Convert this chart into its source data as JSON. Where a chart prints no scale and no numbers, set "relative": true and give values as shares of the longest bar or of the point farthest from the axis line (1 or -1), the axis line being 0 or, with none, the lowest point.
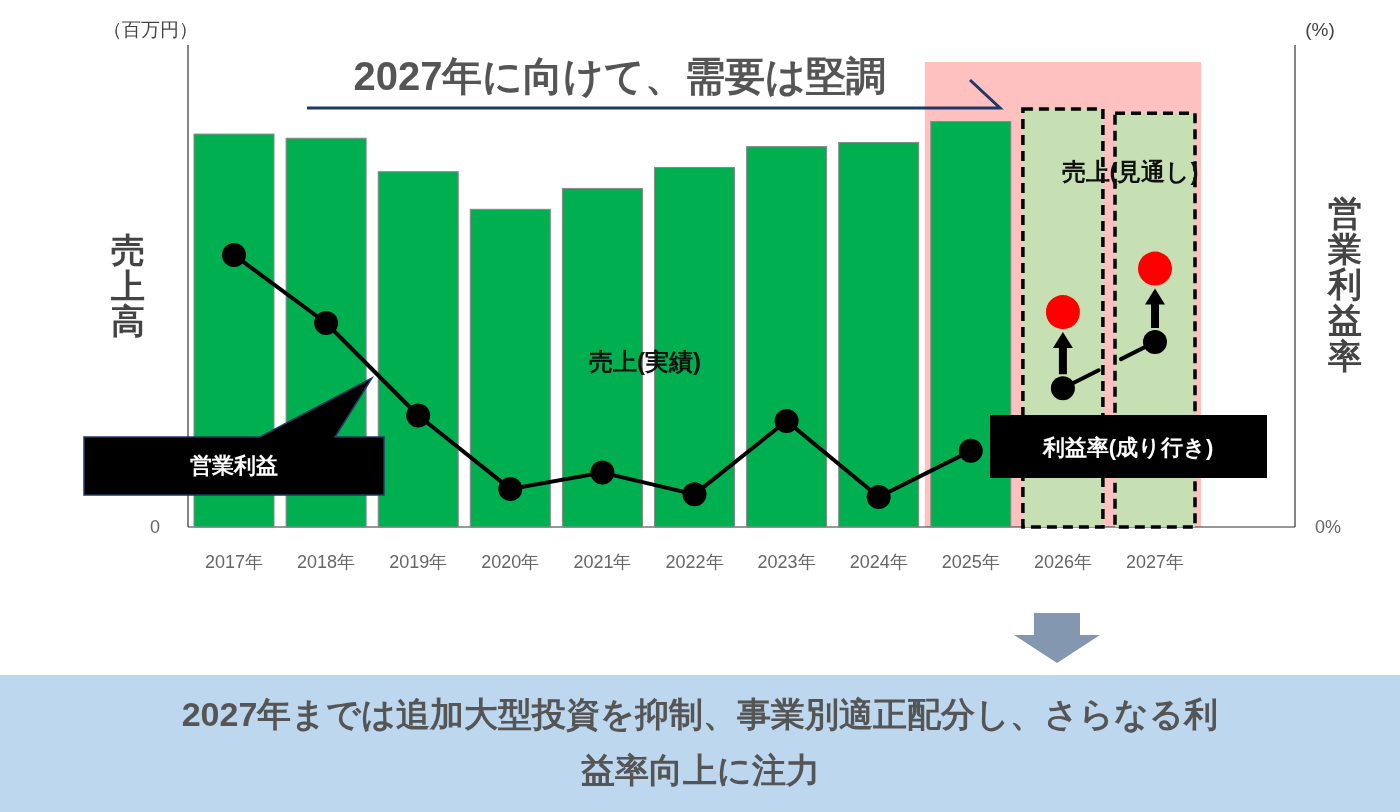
{
  "chart_data": {
    "type": "bar",
    "relative": true,
    "title": "2027年に向けて、需要は堅調",
    "ylabel": "売上高",
    "y2label": "営業利益率",
    "categories": [
      "2017年",
      "2018年",
      "2019年",
      "2020年",
      "2021年",
      "2022年",
      "2023年",
      "2024年",
      "2025年",
      "2026年",
      "2027年"
    ],
    "series": [
      {
        "color": "#00b050",
        "values": [
          0.94,
          0.93,
          0.85,
          0.76,
          0.81,
          0.86,
          0.91,
          0.92,
          0.97,
          null,
          null
        ]
      },
      {
        "color": "#c6e0b4",
        "line_style": "dashed",
        "values": [
          null,
          null,
          null,
          null,
          null,
          null,
          null,
          null,
          null,
          1,
          0.99
        ]
      },
      {
        "type": "line",
        "axis": "y2",
        "color": "#000000",
        "marker": "circle",
        "line_style": "solid",
        "values": [
          1,
          0.75,
          0.41,
          0.14,
          0.2,
          0.12,
          0.39,
          0.11,
          0.28,
          null,
          null
        ]
      },
      {
        "type": "line",
        "axis": "y2",
        "color": "#000000",
        "marker": "circle",
        "line_style": "dashed",
        "values": [
          null,
          null,
          null,
          null,
          null,
          null,
          null,
          null,
          null,
          0.51,
          0.68
        ]
      },
      {
        "type": "scatter",
        "axis": "y2",
        "color": "#ff0000",
        "marker": "circle",
        "values": [
          null,
          null,
          null,
          null,
          null,
          null,
          null,
          null,
          null,
          0.79,
          0.95
        ]
      }
    ],
    "bands": [
      {
        "axis": "x",
        "from": "2025年",
        "to": "2027年",
        "color": "#ffc0c0"
      }
    ],
    "annotations": [
      "（百万円）",
      "(%)",
      "0",
      "0%",
      "2027年までは追加大型投資を抑制、事業別適正配分し、さらなる利益率向上に注力",
      "売上(実績)",
      "売上(見通し)",
      "営業利益",
      "利益率(成り行き)"
    ]
  }
}
